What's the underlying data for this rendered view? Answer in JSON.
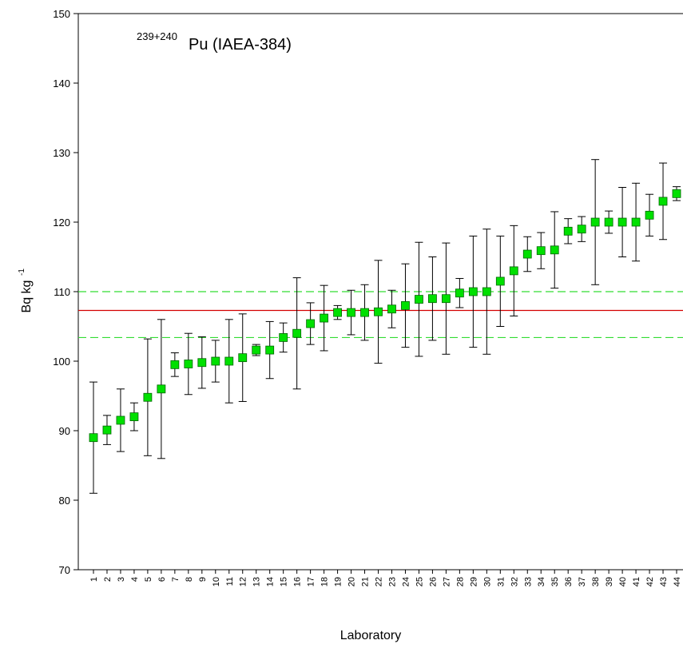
{
  "chart_data": {
    "type": "errorbar",
    "title_superscript": "239+240",
    "title": "Pu (IAEA-384)",
    "xlabel": "Laboratory",
    "ylabel": "Bq kg",
    "ylabel_superscript": "-1",
    "categories": [
      "1",
      "2",
      "3",
      "4",
      "5",
      "6",
      "7",
      "8",
      "9",
      "10",
      "11",
      "12",
      "13",
      "14",
      "15",
      "16",
      "17",
      "18",
      "19",
      "20",
      "21",
      "22",
      "23",
      "24",
      "25",
      "26",
      "27",
      "28",
      "29",
      "30",
      "31",
      "32",
      "33",
      "34",
      "35",
      "36",
      "37",
      "38",
      "39",
      "40",
      "41",
      "42",
      "43",
      "44"
    ],
    "values": [
      89,
      90.1,
      91.5,
      92,
      94.8,
      96,
      99.5,
      99.6,
      99.8,
      100,
      100,
      100.5,
      101.6,
      101.6,
      103.4,
      104,
      105.4,
      106.2,
      107,
      107,
      107,
      107.1,
      107.5,
      108,
      108.9,
      109,
      109,
      109.8,
      110,
      110,
      111.5,
      113,
      115.4,
      115.9,
      116,
      118.7,
      119,
      120,
      120,
      120,
      120,
      121,
      123,
      124.1
    ],
    "errors": [
      8,
      2.1,
      4.5,
      2,
      8.4,
      10,
      1.7,
      4.4,
      3.7,
      3,
      6,
      6.3,
      0.8,
      4.1,
      2.1,
      8,
      3,
      4.7,
      1,
      3.2,
      4,
      7.4,
      2.7,
      6,
      8.2,
      6,
      8,
      2.1,
      8,
      9,
      6.5,
      6.5,
      2.5,
      2.6,
      5.5,
      1.8,
      1.8,
      9,
      1.6,
      5,
      5.6,
      3,
      5.5,
      1
    ],
    "color": "#00e000",
    "ylim": [
      70,
      150
    ],
    "yticks": [
      70,
      80,
      90,
      100,
      110,
      120,
      130,
      140,
      150
    ],
    "grid": false,
    "reference_lines": [
      {
        "value": 107.3,
        "color": "#d40000",
        "style": "solid"
      },
      {
        "value": 103.4,
        "color": "#33dd33",
        "style": "dashed"
      },
      {
        "value": 110,
        "color": "#33dd33",
        "style": "dashed"
      }
    ]
  }
}
